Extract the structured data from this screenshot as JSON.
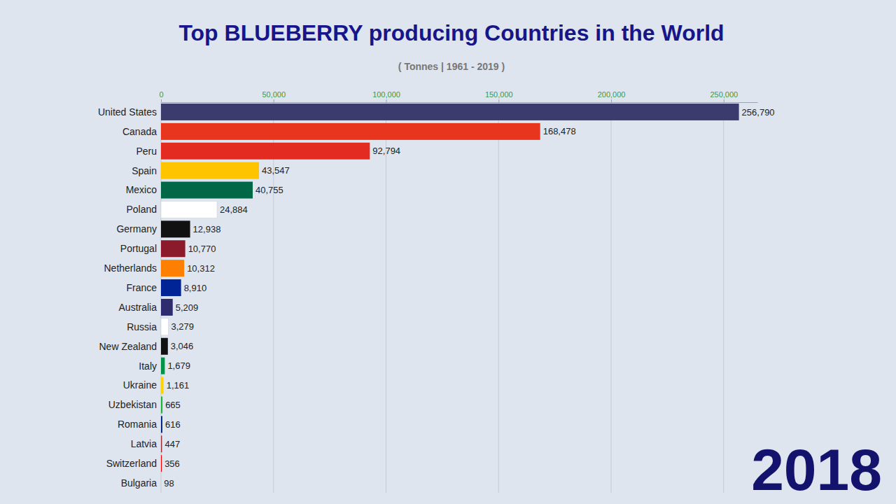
{
  "chart_data": {
    "type": "bar",
    "title": "Top BLUEBERRY producing Countries in the World",
    "subtitle": "( Tonnes | 1961 - 2019 )",
    "annotations": [
      "2018"
    ],
    "orientation": "horizontal",
    "data_labels": true,
    "grid": true,
    "categories": [
      "United States",
      "Canada",
      "Peru",
      "Spain",
      "Mexico",
      "Poland",
      "Germany",
      "Portugal",
      "Netherlands",
      "France",
      "Australia",
      "Russia",
      "New Zealand",
      "Italy",
      "Ukraine",
      "Uzbekistan",
      "Romania",
      "Latvia",
      "Switzerland",
      "Bulgaria"
    ],
    "values": [
      256790,
      168478,
      92794,
      43547,
      40755,
      24884,
      12938,
      10770,
      10312,
      8910,
      5209,
      3279,
      3046,
      1679,
      1161,
      665,
      616,
      447,
      356,
      98
    ],
    "value_labels": [
      "256,790",
      "168,478",
      "92,794",
      "43,547",
      "40,755",
      "24,884",
      "12,938",
      "10,770",
      "10,312",
      "8,910",
      "5,209",
      "3,279",
      "3,046",
      "1,679",
      "1,161",
      "665",
      "616",
      "447",
      "356",
      "98"
    ],
    "colors": [
      "#3c3b6e",
      "#e8351e",
      "#e32b22",
      "#ffc400",
      "#006847",
      "#ffffff",
      "#111111",
      "#8b1a2b",
      "#ff7f00",
      "#002395",
      "#2c2c6e",
      "#ffffff",
      "#111111",
      "#009246",
      "#ffd500",
      "#1eb53a",
      "#002b7f",
      "#9e3039",
      "#ff0000",
      "#ffffff"
    ],
    "xlim": [
      0,
      265000
    ],
    "xticks": [
      0,
      {
        "value": 50000,
        "label": "50,000"
      },
      {
        "value": 100000,
        "label": "100,000"
      },
      {
        "value": 150000,
        "label": "150,000"
      },
      {
        "value": 200000,
        "label": "200,000"
      },
      {
        "value": 250000,
        "label": "250,000"
      }
    ]
  }
}
